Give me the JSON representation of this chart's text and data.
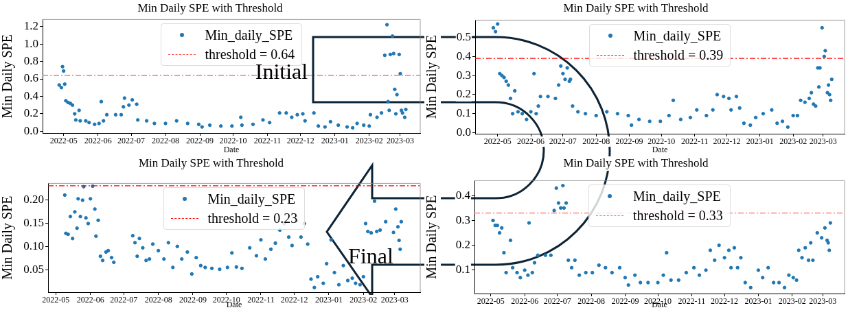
{
  "chart_data": [
    {
      "type": "scatter",
      "title": "Min Daily SPE with Threshold",
      "xlabel": "Date",
      "ylabel": "Min Daily SPE",
      "legend": "top",
      "marker": "circle",
      "grid": false,
      "x": [
        "2022-04-27",
        "2022-04-29",
        "2022-04-30",
        "2022-05-01",
        "2022-05-02",
        "2022-05-03",
        "2022-05-05",
        "2022-05-07",
        "2022-05-09",
        "2022-05-11",
        "2022-05-12",
        "2022-05-15",
        "2022-05-16",
        "2022-05-21",
        "2022-05-24",
        "2022-05-29",
        "2022-06-02",
        "2022-06-04",
        "2022-06-06",
        "2022-06-09",
        "2022-06-17",
        "2022-06-22",
        "2022-06-24",
        "2022-06-25",
        "2022-06-29",
        "2022-07-02",
        "2022-07-06",
        "2022-07-07",
        "2022-07-15",
        "2022-07-22",
        "2022-08-01",
        "2022-08-11",
        "2022-08-21",
        "2022-08-31",
        "2022-09-03",
        "2022-09-10",
        "2022-09-20",
        "2022-09-30",
        "2022-10-08",
        "2022-10-09",
        "2022-10-19",
        "2022-10-28",
        "2022-11-03",
        "2022-11-12",
        "2022-11-18",
        "2022-11-23",
        "2022-11-28",
        "2022-12-03",
        "2022-12-05",
        "2022-12-13",
        "2022-12-17",
        "2022-12-23",
        "2022-12-28",
        "2023-01-04",
        "2023-01-12",
        "2023-01-17",
        "2023-01-21",
        "2023-01-27",
        "2023-02-01",
        "2023-02-02",
        "2023-02-08",
        "2023-02-12",
        "2023-02-15",
        "2023-02-17",
        "2023-02-18",
        "2023-02-19",
        "2023-02-20",
        "2023-02-22",
        "2023-02-23",
        "2023-02-24",
        "2023-02-25",
        "2023-02-26",
        "2023-02-28",
        "2023-03-01",
        "2023-03-02",
        "2023-03-03",
        "2023-03-05",
        "2023-03-06"
      ],
      "series": [
        {
          "name": "Min_daily_SPE",
          "color": "#1f77b4",
          "values": [
            0.53,
            0.5,
            0.74,
            0.69,
            0.54,
            0.35,
            0.33,
            0.32,
            0.3,
            0.2,
            0.13,
            0.24,
            0.12,
            0.12,
            0.1,
            0.08,
            0.09,
            0.34,
            0.12,
            0.19,
            0.19,
            0.19,
            0.28,
            0.38,
            0.3,
            0.36,
            0.31,
            0.13,
            0.12,
            0.09,
            0.09,
            0.12,
            0.09,
            0.08,
            0.05,
            0.07,
            0.06,
            0.06,
            0.16,
            0.07,
            0.08,
            0.13,
            0.1,
            0.21,
            0.21,
            0.16,
            0.19,
            0.2,
            0.12,
            0.21,
            0.06,
            0.05,
            0.11,
            0.07,
            0.05,
            0.04,
            0.09,
            0.07,
            0.06,
            0.19,
            0.16,
            0.21,
            0.87,
            1.22,
            0.34,
            0.24,
            0.88,
            1.09,
            0.89,
            0.48,
            0.2,
            0.42,
            0.88,
            0.66,
            0.24,
            0.21,
            0.16,
            0.25
          ]
        }
      ],
      "xlim": [
        "2022-04-12",
        "2023-03-19"
      ],
      "xticks": [
        "2022-05",
        "2022-06",
        "2022-07",
        "2022-08",
        "2022-09",
        "2022-10",
        "2022-11",
        "2022-12",
        "2023-01",
        "2023-02",
        "2023-03"
      ],
      "ylim": [
        -0.02,
        1.28
      ],
      "yticks": [
        {
          "value": 0,
          "label": "0.0"
        },
        0.2,
        0.4,
        0.6,
        0.8,
        {
          "value": 1,
          "label": "1.0"
        },
        1.2
      ],
      "ref_lines": [
        {
          "axis": "y",
          "value": 0.64,
          "label": "threshold = 0.64",
          "color": "#ff5555",
          "line_style": "dashed"
        }
      ],
      "annotations": [
        "Initial"
      ]
    },
    {
      "type": "scatter",
      "title": "Min Daily SPE with Threshold",
      "xlabel": "Date",
      "ylabel": "Min Daily SPE",
      "legend": "top",
      "marker": "circle",
      "grid": false,
      "x": [
        "2022-04-27",
        "2022-04-29",
        "2022-05-01",
        "2022-05-03",
        "2022-05-05",
        "2022-05-07",
        "2022-05-09",
        "2022-05-11",
        "2022-05-13",
        "2022-05-15",
        "2022-05-17",
        "2022-05-20",
        "2022-05-24",
        "2022-05-28",
        "2022-06-01",
        "2022-06-04",
        "2022-06-06",
        "2022-06-08",
        "2022-06-10",
        "2022-06-17",
        "2022-06-24",
        "2022-06-27",
        "2022-06-29",
        "2022-07-01",
        "2022-07-03",
        "2022-07-05",
        "2022-07-07",
        "2022-07-08",
        "2022-07-10",
        "2022-07-15",
        "2022-07-22",
        "2022-08-01",
        "2022-08-11",
        "2022-08-21",
        "2022-08-31",
        "2022-09-03",
        "2022-09-10",
        "2022-09-20",
        "2022-09-30",
        "2022-10-08",
        "2022-10-12",
        "2022-10-19",
        "2022-10-28",
        "2022-11-03",
        "2022-11-12",
        "2022-11-18",
        "2022-11-22",
        "2022-11-28",
        "2022-12-03",
        "2022-12-05",
        "2022-12-10",
        "2022-12-13",
        "2022-12-17",
        "2022-12-23",
        "2022-12-28",
        "2023-01-04",
        "2023-01-12",
        "2023-01-17",
        "2023-01-22",
        "2023-01-27",
        "2023-02-01",
        "2023-02-05",
        "2023-02-08",
        "2023-02-12",
        "2023-02-16",
        "2023-02-18",
        "2023-02-20",
        "2023-02-22",
        "2023-02-24",
        "2023-02-25",
        "2023-02-26",
        "2023-02-28",
        "2023-03-02",
        "2023-03-03",
        "2023-03-05",
        "2023-03-06",
        "2023-03-07",
        "2023-03-08",
        "2023-03-09"
      ],
      "series": [
        {
          "name": "Min_daily_SPE",
          "color": "#1f77b4",
          "values": [
            0.55,
            0.53,
            0.57,
            0.31,
            0.3,
            0.29,
            0.27,
            0.25,
            0.18,
            0.1,
            0.22,
            0.11,
            0.1,
            0.07,
            0.11,
            0.31,
            0.1,
            0.14,
            0.19,
            0.19,
            0.18,
            0.25,
            0.35,
            0.31,
            0.28,
            0.34,
            0.27,
            0.28,
            0.14,
            0.11,
            0.1,
            0.09,
            0.11,
            0.1,
            0.09,
            0.04,
            0.07,
            0.06,
            0.06,
            0.09,
            0.17,
            0.07,
            0.08,
            0.12,
            0.09,
            0.12,
            0.2,
            0.19,
            0.18,
            0.12,
            0.19,
            0.13,
            0.05,
            0.04,
            0.08,
            0.1,
            0.12,
            0.05,
            0.06,
            0.03,
            0.09,
            0.09,
            0.17,
            0.16,
            0.18,
            0.21,
            0.15,
            0.14,
            0.34,
            0.24,
            0.34,
            0.55,
            0.4,
            0.43,
            0.21,
            0.25,
            0.2,
            0.17,
            0.28
          ]
        }
      ],
      "xlim": [
        "2022-04-10",
        "2023-03-21"
      ],
      "xticks": [
        "2022-05",
        "2022-06",
        "2022-07",
        "2022-08",
        "2022-09",
        "2022-10",
        "2022-11",
        "2022-12",
        "2023-01",
        "2023-02",
        "2023-03"
      ],
      "ylim": [
        -0.005,
        0.59
      ],
      "yticks": [
        {
          "value": 0,
          "label": "0.0"
        },
        0.1,
        0.2,
        0.3,
        0.4,
        0.5
      ],
      "ref_lines": [
        {
          "axis": "y",
          "value": 0.39,
          "label": "threshold = 0.39",
          "color": "#ff0000",
          "line_style": "dashed"
        }
      ]
    },
    {
      "type": "scatter",
      "title": "Min Daily SPE with Threshold",
      "xlabel": "Date",
      "ylabel": "Min Daily SPE",
      "legend": "top",
      "marker": "circle",
      "grid": false,
      "x": [
        "2022-05-09",
        "2022-05-10",
        "2022-05-12",
        "2022-05-14",
        "2022-05-16",
        "2022-05-18",
        "2022-05-20",
        "2022-05-21",
        "2022-05-23",
        "2022-05-25",
        "2022-05-26",
        "2022-05-28",
        "2022-05-30",
        "2022-06-01",
        "2022-06-03",
        "2022-06-05",
        "2022-06-06",
        "2022-06-08",
        "2022-06-10",
        "2022-06-12",
        "2022-06-15",
        "2022-06-17",
        "2022-06-20",
        "2022-06-22",
        "2022-07-09",
        "2022-07-11",
        "2022-07-13",
        "2022-07-15",
        "2022-07-18",
        "2022-07-21",
        "2022-07-24",
        "2022-07-27",
        "2022-08-01",
        "2022-08-06",
        "2022-08-10",
        "2022-08-14",
        "2022-08-18",
        "2022-08-22",
        "2022-08-27",
        "2022-08-31",
        "2022-09-04",
        "2022-09-08",
        "2022-09-12",
        "2022-09-18",
        "2022-09-25",
        "2022-10-02",
        "2022-10-06",
        "2022-10-10",
        "2022-10-15",
        "2022-10-22",
        "2022-10-28",
        "2022-11-01",
        "2022-11-05",
        "2022-11-10",
        "2022-11-14",
        "2022-11-18",
        "2022-11-22",
        "2022-11-26",
        "2022-11-29",
        "2022-12-03",
        "2022-12-07",
        "2022-12-10",
        "2022-12-13",
        "2022-12-16",
        "2022-12-19",
        "2022-12-22",
        "2022-12-27",
        "2022-12-30",
        "2023-01-03",
        "2023-01-06",
        "2023-01-10",
        "2023-01-14",
        "2023-01-18",
        "2023-01-22",
        "2023-01-25",
        "2023-01-29",
        "2023-02-01",
        "2023-02-03",
        "2023-02-05",
        "2023-02-08",
        "2023-02-11",
        "2023-02-13",
        "2023-02-16",
        "2023-02-21",
        "2023-02-28",
        "2023-03-02",
        "2023-03-04",
        "2023-03-05",
        "2023-03-06",
        "2023-03-07"
      ],
      "series": [
        {
          "name": "Min_daily_SPE",
          "color": "#1f77b4",
          "values": [
            0.21,
            0.128,
            0.126,
            0.164,
            0.117,
            0.174,
            0.139,
            0.202,
            0.164,
            0.199,
            0.228,
            0.161,
            0.149,
            0.202,
            0.229,
            0.18,
            0.122,
            0.156,
            0.079,
            0.07,
            0.088,
            0.091,
            0.076,
            0.066,
            0.123,
            0.108,
            0.079,
            0.117,
            0.097,
            0.07,
            0.073,
            0.105,
            0.091,
            0.073,
            0.108,
            0.055,
            0.1,
            0.073,
            0.088,
            0.041,
            0.076,
            0.059,
            0.055,
            0.053,
            0.051,
            0.055,
            0.086,
            0.056,
            0.053,
            0.097,
            0.08,
            0.114,
            0.073,
            0.094,
            0.107,
            0.135,
            0.149,
            0.12,
            0.102,
            0.155,
            0.12,
            0.149,
            0.105,
            0.03,
            0.012,
            0.035,
            0.021,
            0.063,
            0.114,
            0.044,
            0.018,
            0.059,
            0.027,
            0.032,
            0.021,
            0.018,
            0.035,
            0.149,
            0.132,
            0.129,
            0.197,
            0.132,
            0.135,
            0.153,
            0.13,
            0.18,
            0.142,
            0.113,
            0.094,
            0.153
          ]
        }
      ],
      "xlim": [
        "2022-04-24",
        "2023-03-24"
      ],
      "xticks": [
        "2022-05",
        "2022-06",
        "2022-07",
        "2022-08",
        "2022-09",
        "2022-10",
        "2022-11",
        "2022-12",
        "2023-01",
        "2023-02",
        "2023-03"
      ],
      "ylim": [
        0.002,
        0.235
      ],
      "yticks": [
        0.05,
        {
          "value": 0.1,
          "label": "0.10"
        },
        0.15,
        {
          "value": 0.2,
          "label": "0.20"
        }
      ],
      "ref_lines": [
        {
          "axis": "y",
          "value": 0.23,
          "label": "threshold = 0.23",
          "color": "#ff0000",
          "line_style": "dashed"
        }
      ],
      "annotations": [
        "Final"
      ]
    },
    {
      "type": "scatter",
      "title": "Min Daily SPE with Threshold",
      "xlabel": "Date",
      "ylabel": "Min Daily SPE",
      "legend": "top",
      "marker": "circle",
      "grid": false,
      "x": [
        "2022-05-03",
        "2022-05-05",
        "2022-05-07",
        "2022-05-09",
        "2022-05-11",
        "2022-05-13",
        "2022-05-15",
        "2022-05-19",
        "2022-05-21",
        "2022-05-25",
        "2022-05-28",
        "2022-06-01",
        "2022-06-04",
        "2022-06-05",
        "2022-06-08",
        "2022-06-10",
        "2022-06-13",
        "2022-06-20",
        "2022-06-25",
        "2022-06-28",
        "2022-06-30",
        "2022-07-02",
        "2022-07-04",
        "2022-07-06",
        "2022-07-07",
        "2022-07-09",
        "2022-07-11",
        "2022-07-14",
        "2022-07-17",
        "2022-07-21",
        "2022-07-27",
        "2022-08-02",
        "2022-08-08",
        "2022-08-14",
        "2022-08-20",
        "2022-08-27",
        "2022-09-01",
        "2022-09-04",
        "2022-09-10",
        "2022-09-15",
        "2022-09-22",
        "2022-10-01",
        "2022-10-06",
        "2022-10-09",
        "2022-10-13",
        "2022-10-20",
        "2022-10-27",
        "2022-11-03",
        "2022-11-08",
        "2022-11-14",
        "2022-11-18",
        "2022-11-22",
        "2022-11-26",
        "2022-12-01",
        "2022-12-05",
        "2022-12-07",
        "2022-12-10",
        "2022-12-13",
        "2022-12-16",
        "2022-12-20",
        "2022-12-25",
        "2023-01-01",
        "2023-01-05",
        "2023-01-10",
        "2023-01-15",
        "2023-01-20",
        "2023-01-25",
        "2023-01-29",
        "2023-02-02",
        "2023-02-05",
        "2023-02-07",
        "2023-02-10",
        "2023-02-13",
        "2023-02-16",
        "2023-02-18",
        "2023-02-20",
        "2023-02-24",
        "2023-02-28",
        "2023-03-03",
        "2023-03-05",
        "2023-03-06",
        "2023-03-07",
        "2023-03-08"
      ],
      "series": [
        {
          "name": "Min_daily_SPE",
          "color": "#1f77b4",
          "values": [
            0.3,
            0.28,
            0.28,
            0.25,
            0.27,
            0.17,
            0.09,
            0.22,
            0.11,
            0.09,
            0.07,
            0.1,
            0.08,
            0.29,
            0.09,
            0.13,
            0.16,
            0.16,
            0.16,
            0.34,
            0.43,
            0.37,
            0.35,
            0.44,
            0.35,
            0.37,
            0.14,
            0.11,
            0.14,
            0.08,
            0.09,
            0.09,
            0.12,
            0.11,
            0.09,
            0.11,
            0.07,
            0.04,
            0.08,
            0.05,
            0.05,
            0.05,
            0.08,
            0.17,
            0.06,
            0.06,
            0.09,
            0.11,
            0.08,
            0.1,
            0.18,
            0.14,
            0.2,
            0.15,
            0.18,
            0.11,
            0.19,
            0.11,
            0.15,
            0.05,
            0.03,
            0.1,
            0.07,
            0.11,
            0.05,
            0.05,
            0.03,
            0.08,
            0.07,
            0.06,
            0.18,
            0.15,
            0.19,
            0.14,
            0.21,
            0.14,
            0.25,
            0.23,
            0.27,
            0.22,
            0.21,
            0.18,
            0.29
          ]
        }
      ],
      "xlim": [
        "2022-04-16",
        "2023-03-21"
      ],
      "xticks": [
        "2022-05",
        "2022-06",
        "2022-07",
        "2022-08",
        "2022-09",
        "2022-10",
        "2022-11",
        "2022-12",
        "2023-01",
        "2023-02",
        "2023-03"
      ],
      "ylim": [
        0.006,
        0.46
      ],
      "yticks": [
        0.1,
        0.2,
        0.3,
        0.4
      ],
      "ref_lines": [
        {
          "axis": "y",
          "value": 0.33,
          "label": "threshold = 0.33",
          "color": "#ff6666",
          "line_style": "dashed"
        }
      ]
    }
  ]
}
